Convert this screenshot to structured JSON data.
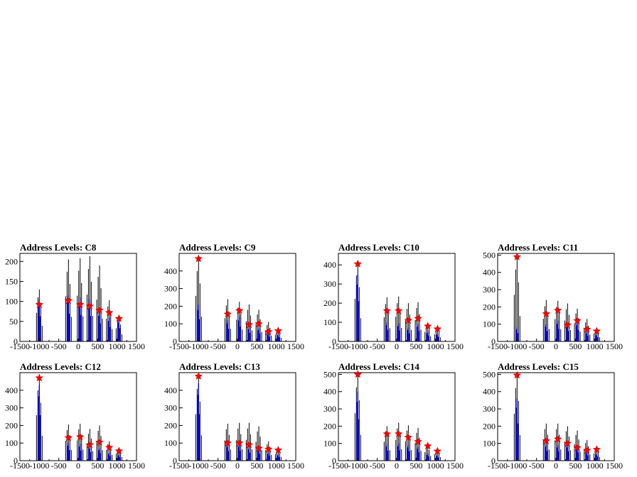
{
  "chart_data": [
    {
      "type": "histogram",
      "title": "Address Levels: C8",
      "xlim": [
        -1500,
        1500
      ],
      "ylim": [
        0,
        220
      ],
      "xticks": [
        -1500,
        -1000,
        -500,
        0,
        500,
        1000,
        1500
      ],
      "yticks": [
        0,
        50,
        100,
        150,
        200
      ],
      "peaks": [
        {
          "x": -1000,
          "blue": 105,
          "black": 130,
          "marker": 92
        },
        {
          "x": -250,
          "blue": 115,
          "black": 205,
          "marker": 102
        },
        {
          "x": 50,
          "blue": 110,
          "black": 208,
          "marker": 92
        },
        {
          "x": 300,
          "blue": 105,
          "black": 213,
          "marker": 88
        },
        {
          "x": 550,
          "blue": 75,
          "black": 190,
          "marker": 78
        },
        {
          "x": 800,
          "blue": 60,
          "black": 103,
          "marker": 72
        },
        {
          "x": 1050,
          "blue": 55,
          "black": 60,
          "marker": 57
        }
      ]
    },
    {
      "type": "histogram",
      "title": "Address Levels: C9",
      "xlim": [
        -1500,
        1500
      ],
      "ylim": [
        0,
        500
      ],
      "xticks": [
        -1500,
        -1000,
        -500,
        0,
        500,
        1000,
        1500
      ],
      "yticks": [
        0,
        100,
        200,
        300,
        400
      ],
      "peaks": [
        {
          "x": -1000,
          "blue": 210,
          "black": 470,
          "marker": 470
        },
        {
          "x": -250,
          "blue": 120,
          "black": 240,
          "marker": 155
        },
        {
          "x": 50,
          "blue": 140,
          "black": 225,
          "marker": 175
        },
        {
          "x": 300,
          "blue": 80,
          "black": 210,
          "marker": 95
        },
        {
          "x": 550,
          "blue": 75,
          "black": 180,
          "marker": 100
        },
        {
          "x": 800,
          "blue": 45,
          "black": 110,
          "marker": 55
        },
        {
          "x": 1050,
          "blue": 40,
          "black": 70,
          "marker": 60
        }
      ]
    },
    {
      "type": "histogram",
      "title": "Address Levels: C10",
      "xlim": [
        -1500,
        1500
      ],
      "ylim": [
        0,
        460
      ],
      "xticks": [
        -1500,
        -1000,
        -500,
        0,
        500,
        1000,
        1500
      ],
      "yticks": [
        0,
        100,
        200,
        300,
        400
      ],
      "peaks": [
        {
          "x": -1000,
          "blue": 350,
          "black": 405,
          "marker": 405
        },
        {
          "x": -250,
          "blue": 100,
          "black": 230,
          "marker": 160
        },
        {
          "x": 50,
          "blue": 95,
          "black": 235,
          "marker": 160
        },
        {
          "x": 300,
          "blue": 70,
          "black": 200,
          "marker": 110
        },
        {
          "x": 550,
          "blue": 90,
          "black": 205,
          "marker": 120
        },
        {
          "x": 800,
          "blue": 50,
          "black": 90,
          "marker": 80
        },
        {
          "x": 1050,
          "blue": 40,
          "black": 70,
          "marker": 65
        }
      ]
    },
    {
      "type": "histogram",
      "title": "Address Levels: C11",
      "xlim": [
        -1500,
        1500
      ],
      "ylim": [
        0,
        510
      ],
      "xticks": [
        -1500,
        -1000,
        -500,
        0,
        500,
        1000,
        1500
      ],
      "yticks": [
        0,
        100,
        200,
        300,
        400,
        500
      ],
      "peaks": [
        {
          "x": -1000,
          "blue": 80,
          "black": 490,
          "marker": 490
        },
        {
          "x": -250,
          "blue": 100,
          "black": 240,
          "marker": 160
        },
        {
          "x": 50,
          "blue": 120,
          "black": 235,
          "marker": 180
        },
        {
          "x": 300,
          "blue": 100,
          "black": 220,
          "marker": 95
        },
        {
          "x": 550,
          "blue": 110,
          "black": 190,
          "marker": 120
        },
        {
          "x": 800,
          "blue": 55,
          "black": 130,
          "marker": 70
        },
        {
          "x": 1050,
          "blue": 40,
          "black": 80,
          "marker": 60
        }
      ]
    },
    {
      "type": "histogram",
      "title": "Address Levels: C12",
      "xlim": [
        -1500,
        1500
      ],
      "ylim": [
        0,
        500
      ],
      "xticks": [
        -1500,
        -1000,
        -500,
        0,
        500,
        1000,
        1500
      ],
      "yticks": [
        0,
        100,
        200,
        300,
        400
      ],
      "peaks": [
        {
          "x": -1000,
          "blue": 430,
          "black": 470,
          "marker": 470
        },
        {
          "x": -250,
          "blue": 100,
          "black": 205,
          "marker": 130
        },
        {
          "x": 50,
          "blue": 95,
          "black": 210,
          "marker": 135
        },
        {
          "x": 300,
          "blue": 80,
          "black": 180,
          "marker": 90
        },
        {
          "x": 550,
          "blue": 70,
          "black": 200,
          "marker": 105
        },
        {
          "x": 800,
          "blue": 45,
          "black": 110,
          "marker": 75
        },
        {
          "x": 1050,
          "blue": 35,
          "black": 70,
          "marker": 55
        }
      ]
    },
    {
      "type": "histogram",
      "title": "Address Levels: C13",
      "xlim": [
        -1500,
        1500
      ],
      "ylim": [
        0,
        500
      ],
      "xticks": [
        -1500,
        -1000,
        -500,
        0,
        500,
        1000,
        1500
      ],
      "yticks": [
        0,
        100,
        200,
        300,
        400
      ],
      "peaks": [
        {
          "x": -1000,
          "blue": 440,
          "black": 480,
          "marker": 480
        },
        {
          "x": -250,
          "blue": 90,
          "black": 210,
          "marker": 100
        },
        {
          "x": 50,
          "blue": 95,
          "black": 215,
          "marker": 100
        },
        {
          "x": 300,
          "blue": 75,
          "black": 215,
          "marker": 90
        },
        {
          "x": 550,
          "blue": 65,
          "black": 195,
          "marker": 70
        },
        {
          "x": 800,
          "blue": 45,
          "black": 110,
          "marker": 65
        },
        {
          "x": 1050,
          "blue": 35,
          "black": 70,
          "marker": 60
        }
      ]
    },
    {
      "type": "histogram",
      "title": "Address Levels: C14",
      "xlim": [
        -1500,
        1500
      ],
      "ylim": [
        0,
        510
      ],
      "xticks": [
        -1500,
        -1000,
        -500,
        0,
        500,
        1000,
        1500
      ],
      "yticks": [
        0,
        100,
        200,
        300,
        400,
        500
      ],
      "peaks": [
        {
          "x": -1000,
          "blue": 400,
          "black": 500,
          "marker": 500
        },
        {
          "x": -250,
          "blue": 95,
          "black": 200,
          "marker": 155
        },
        {
          "x": 50,
          "blue": 100,
          "black": 220,
          "marker": 155
        },
        {
          "x": 300,
          "blue": 90,
          "black": 205,
          "marker": 135
        },
        {
          "x": 550,
          "blue": 80,
          "black": 190,
          "marker": 110
        },
        {
          "x": 800,
          "blue": 40,
          "black": 90,
          "marker": 85
        },
        {
          "x": 1050,
          "blue": 30,
          "black": 70,
          "marker": 55
        }
      ]
    },
    {
      "type": "histogram",
      "title": "Address Levels: C15",
      "xlim": [
        -1500,
        1500
      ],
      "ylim": [
        0,
        510
      ],
      "xticks": [
        -1500,
        -1000,
        -500,
        0,
        500,
        1000,
        1500
      ],
      "yticks": [
        0,
        100,
        200,
        300,
        400,
        500
      ],
      "peaks": [
        {
          "x": -1000,
          "blue": 360,
          "black": 495,
          "marker": 495
        },
        {
          "x": -250,
          "blue": 95,
          "black": 215,
          "marker": 115
        },
        {
          "x": 50,
          "blue": 90,
          "black": 215,
          "marker": 125
        },
        {
          "x": 300,
          "blue": 90,
          "black": 200,
          "marker": 100
        },
        {
          "x": 550,
          "blue": 80,
          "black": 175,
          "marker": 75
        },
        {
          "x": 800,
          "blue": 50,
          "black": 120,
          "marker": 60
        },
        {
          "x": 1050,
          "blue": 40,
          "black": 75,
          "marker": 65
        }
      ]
    }
  ],
  "colors": {
    "primary_hist": "#000000",
    "secondary_hist": "#0000ff",
    "marker": "#ff0000",
    "frame": "#000000"
  }
}
